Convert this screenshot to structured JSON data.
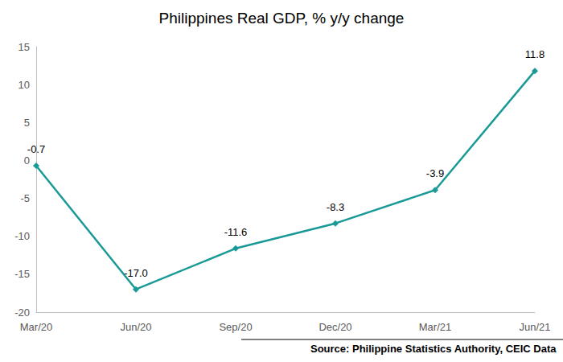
{
  "chart_data": {
    "type": "line",
    "title": "Philippines Real GDP, % y/y change",
    "source": "Source: Philippine Statistics Authority, CEIC Data",
    "categories": [
      "Mar/20",
      "Jun/20",
      "Sep/20",
      "Dec/20",
      "Mar/21",
      "Jun/21"
    ],
    "values": [
      -0.7,
      -17,
      -11.6,
      -8.3,
      -3.9,
      11.8
    ],
    "value_labels": [
      "-0.7",
      "-17.0",
      "-11.6",
      "-8.3",
      "-3.9",
      "11.8"
    ],
    "color": "#1a9a96",
    "marker": "diamond",
    "ylim": [
      -20,
      15
    ],
    "yticks": [
      -20,
      -15,
      -10,
      -5,
      0,
      5,
      10,
      15
    ],
    "grid": false,
    "data_labels": true
  }
}
